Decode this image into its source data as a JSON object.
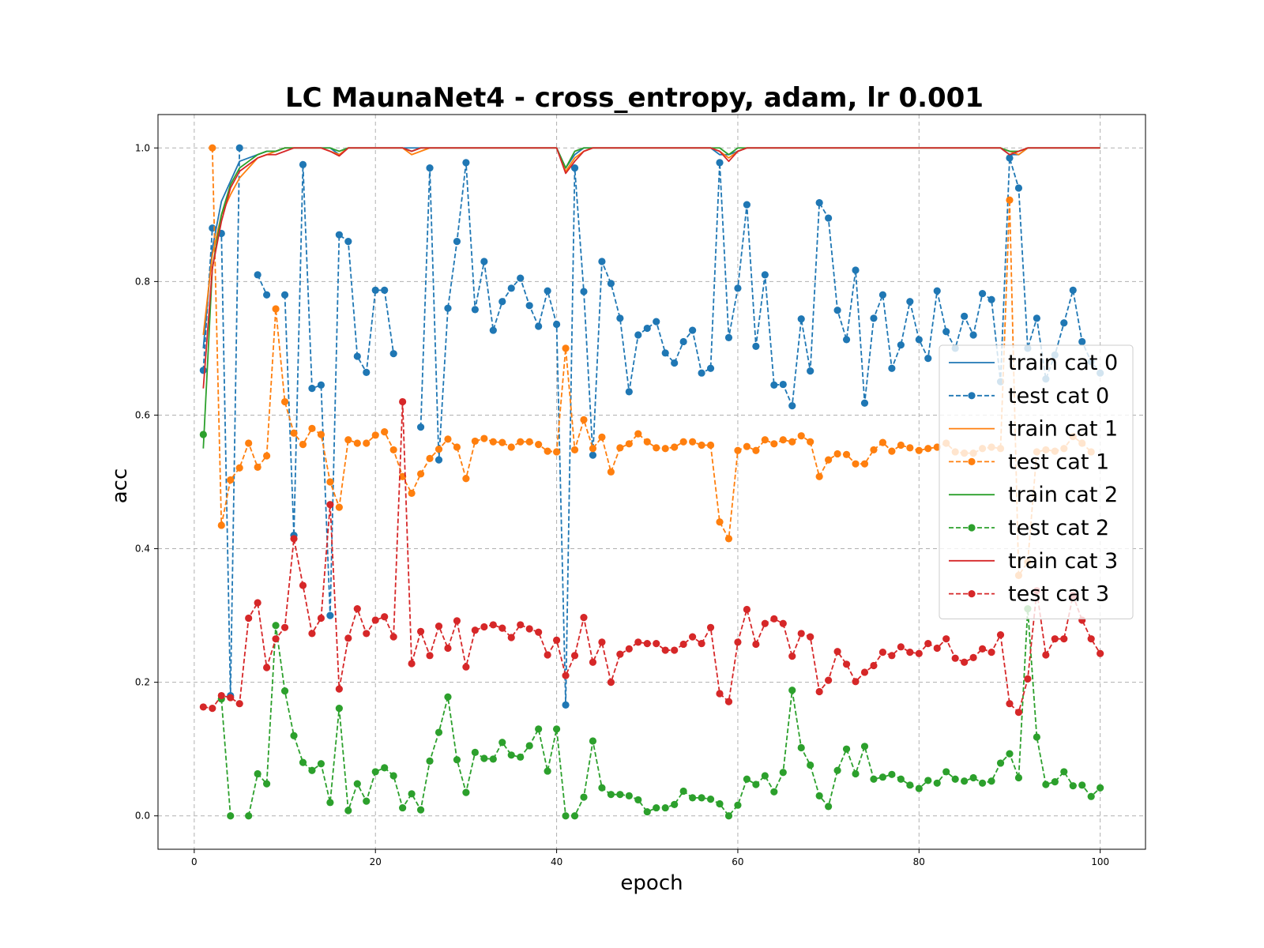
{
  "chart_data": {
    "type": "line",
    "title": "LC MaunaNet4 - cross_entropy, adam, lr 0.001",
    "xlabel": "epoch",
    "ylabel": "acc",
    "xlim": [
      -4,
      105
    ],
    "ylim": [
      -0.05,
      1.05
    ],
    "xticks": [
      0,
      20,
      40,
      60,
      80,
      100
    ],
    "yticks": [
      0.0,
      0.2,
      0.4,
      0.6,
      0.8,
      1.0
    ],
    "grid": true,
    "legend_position": "center-right",
    "x_start": 1,
    "series": [
      {
        "name": "train cat 0",
        "color": "#1f77b4",
        "style": "solid",
        "values": [
          0.7,
          0.85,
          0.92,
          0.95,
          0.98,
          0.985,
          0.99,
          0.995,
          0.995,
          1.0,
          1.0,
          1.0,
          1.0,
          1.0,
          1.0,
          0.99,
          1.0,
          1.0,
          1.0,
          1.0,
          1.0,
          1.0,
          1.0,
          1.0,
          1.0,
          1.0,
          1.0,
          1.0,
          1.0,
          1.0,
          1.0,
          1.0,
          1.0,
          1.0,
          1.0,
          1.0,
          1.0,
          1.0,
          1.0,
          1.0,
          0.97,
          0.99,
          1.0,
          1.0,
          1.0,
          1.0,
          1.0,
          1.0,
          1.0,
          1.0,
          1.0,
          1.0,
          1.0,
          1.0,
          1.0,
          1.0,
          1.0,
          0.99,
          0.99,
          0.995,
          1.0,
          1.0,
          1.0,
          1.0,
          1.0,
          1.0,
          1.0,
          1.0,
          1.0,
          1.0,
          1.0,
          1.0,
          1.0,
          1.0,
          1.0,
          1.0,
          1.0,
          1.0,
          1.0,
          1.0,
          1.0,
          1.0,
          1.0,
          1.0,
          1.0,
          1.0,
          1.0,
          1.0,
          1.0,
          0.99,
          0.99,
          1.0,
          1.0,
          1.0,
          1.0,
          1.0,
          1.0,
          1.0,
          1.0,
          1.0
        ]
      },
      {
        "name": "test cat 0",
        "color": "#1f77b4",
        "style": "dashed",
        "values": [
          0.667,
          0.88,
          0.872,
          0.18,
          1.0,
          null,
          0.81,
          0.78,
          null,
          0.78,
          0.42,
          0.975,
          0.64,
          0.645,
          0.3,
          0.87,
          0.86,
          0.688,
          0.664,
          0.787,
          0.787,
          0.692,
          null,
          null,
          0.582,
          0.97,
          0.533,
          0.76,
          0.86,
          0.978,
          0.758,
          0.83,
          0.727,
          0.77,
          0.79,
          0.805,
          0.764,
          0.733,
          0.786,
          0.736,
          0.166,
          0.97,
          0.785,
          0.54,
          0.83,
          0.797,
          0.745,
          0.635,
          0.72,
          0.73,
          0.74,
          0.693,
          0.678,
          0.71,
          0.727,
          0.663,
          0.67,
          0.978,
          0.716,
          0.79,
          0.915,
          0.703,
          0.81,
          0.645,
          0.646,
          0.614,
          0.744,
          0.666,
          0.918,
          0.895,
          0.757,
          0.713,
          0.817,
          0.618,
          0.745,
          0.78,
          0.67,
          0.705,
          0.77,
          0.713,
          0.685,
          0.786,
          0.725,
          0.7,
          0.748,
          0.72,
          0.782,
          0.773,
          0.65,
          0.985,
          0.94,
          0.7,
          0.745,
          0.654,
          0.69,
          0.738,
          0.787,
          0.71,
          0.68,
          0.663
        ]
      },
      {
        "name": "train cat 1",
        "color": "#ff7f0e",
        "style": "solid",
        "values": [
          0.72,
          0.84,
          0.9,
          0.93,
          0.955,
          0.97,
          0.985,
          0.99,
          0.995,
          1.0,
          1.0,
          1.0,
          1.0,
          1.0,
          0.995,
          0.99,
          1.0,
          1.0,
          1.0,
          1.0,
          1.0,
          1.0,
          1.0,
          0.99,
          0.995,
          1.0,
          1.0,
          1.0,
          1.0,
          1.0,
          1.0,
          1.0,
          1.0,
          1.0,
          1.0,
          1.0,
          1.0,
          1.0,
          1.0,
          1.0,
          0.965,
          0.985,
          0.995,
          1.0,
          1.0,
          1.0,
          1.0,
          1.0,
          1.0,
          1.0,
          1.0,
          1.0,
          1.0,
          1.0,
          1.0,
          1.0,
          1.0,
          0.995,
          0.985,
          0.995,
          1.0,
          1.0,
          1.0,
          1.0,
          1.0,
          1.0,
          1.0,
          1.0,
          1.0,
          1.0,
          1.0,
          1.0,
          1.0,
          1.0,
          1.0,
          1.0,
          1.0,
          1.0,
          1.0,
          1.0,
          1.0,
          1.0,
          1.0,
          1.0,
          1.0,
          1.0,
          1.0,
          1.0,
          1.0,
          0.995,
          0.99,
          1.0,
          1.0,
          1.0,
          1.0,
          1.0,
          1.0,
          1.0,
          1.0,
          1.0
        ]
      },
      {
        "name": "test cat 1",
        "color": "#ff7f0e",
        "style": "dashed",
        "values": [
          null,
          1.0,
          0.435,
          0.503,
          0.521,
          0.558,
          0.522,
          0.539,
          0.759,
          0.62,
          0.573,
          0.556,
          0.58,
          0.571,
          0.5,
          0.462,
          0.563,
          0.558,
          0.558,
          0.57,
          0.575,
          0.548,
          0.508,
          0.483,
          0.512,
          0.535,
          0.549,
          0.564,
          0.552,
          0.505,
          0.561,
          0.565,
          0.56,
          0.559,
          0.552,
          0.56,
          0.56,
          0.556,
          0.546,
          0.545,
          0.7,
          0.548,
          0.593,
          0.55,
          0.567,
          0.515,
          0.551,
          0.557,
          0.572,
          0.56,
          0.551,
          0.55,
          0.552,
          0.56,
          0.56,
          0.555,
          0.555,
          0.44,
          0.415,
          0.547,
          0.553,
          0.547,
          0.563,
          0.557,
          0.563,
          0.56,
          0.569,
          0.56,
          0.508,
          0.533,
          0.542,
          0.541,
          0.527,
          0.527,
          0.548,
          0.559,
          0.546,
          0.555,
          0.551,
          0.547,
          0.55,
          0.552,
          0.558,
          0.545,
          0.543,
          0.543,
          0.55,
          0.552,
          0.55,
          0.922,
          0.36,
          0.38,
          0.545,
          0.548,
          0.546,
          0.55,
          0.568,
          0.558,
          0.545,
          null
        ]
      },
      {
        "name": "train cat 2",
        "color": "#2ca02c",
        "style": "solid",
        "values": [
          0.55,
          0.82,
          0.9,
          0.945,
          0.97,
          0.98,
          0.99,
          0.995,
          0.995,
          1.0,
          1.0,
          1.0,
          1.0,
          1.0,
          1.0,
          0.995,
          1.0,
          1.0,
          1.0,
          1.0,
          1.0,
          1.0,
          1.0,
          0.995,
          1.0,
          1.0,
          1.0,
          1.0,
          1.0,
          1.0,
          1.0,
          1.0,
          1.0,
          1.0,
          1.0,
          1.0,
          1.0,
          1.0,
          1.0,
          1.0,
          0.97,
          0.995,
          1.0,
          1.0,
          1.0,
          1.0,
          1.0,
          1.0,
          1.0,
          1.0,
          1.0,
          1.0,
          1.0,
          1.0,
          1.0,
          1.0,
          1.0,
          1.0,
          0.99,
          1.0,
          1.0,
          1.0,
          1.0,
          1.0,
          1.0,
          1.0,
          1.0,
          1.0,
          1.0,
          1.0,
          1.0,
          1.0,
          1.0,
          1.0,
          1.0,
          1.0,
          1.0,
          1.0,
          1.0,
          1.0,
          1.0,
          1.0,
          1.0,
          1.0,
          1.0,
          1.0,
          1.0,
          1.0,
          1.0,
          0.995,
          0.995,
          1.0,
          1.0,
          1.0,
          1.0,
          1.0,
          1.0,
          1.0,
          1.0,
          1.0
        ]
      },
      {
        "name": "test cat 2",
        "color": "#2ca02c",
        "style": "dashed",
        "values": [
          0.571,
          null,
          0.175,
          0.0,
          null,
          0.0,
          0.063,
          0.048,
          0.285,
          0.187,
          0.12,
          0.08,
          0.068,
          0.078,
          0.02,
          0.161,
          0.008,
          0.048,
          0.022,
          0.066,
          0.072,
          0.06,
          0.012,
          0.033,
          0.009,
          0.082,
          0.125,
          0.178,
          0.084,
          0.035,
          0.095,
          0.086,
          0.085,
          0.11,
          0.091,
          0.088,
          0.105,
          0.13,
          0.067,
          0.13,
          0.0,
          0.0,
          0.028,
          0.112,
          0.042,
          0.032,
          0.032,
          0.03,
          0.024,
          0.006,
          0.012,
          0.012,
          0.017,
          0.037,
          0.027,
          0.027,
          0.025,
          0.018,
          0.0,
          0.016,
          0.055,
          0.047,
          0.06,
          0.036,
          0.065,
          0.188,
          0.102,
          0.076,
          0.03,
          0.014,
          0.068,
          0.1,
          0.063,
          0.104,
          0.055,
          0.058,
          0.062,
          0.055,
          0.046,
          0.041,
          0.053,
          0.049,
          0.066,
          0.055,
          0.052,
          0.057,
          0.049,
          0.052,
          0.079,
          0.093,
          0.057,
          0.31,
          0.118,
          0.047,
          0.051,
          0.066,
          0.045,
          0.046,
          0.029,
          0.042
        ]
      },
      {
        "name": "train cat 3",
        "color": "#d62728",
        "style": "solid",
        "values": [
          0.64,
          0.82,
          0.89,
          0.94,
          0.965,
          0.975,
          0.985,
          0.99,
          0.99,
          0.995,
          1.0,
          1.0,
          1.0,
          1.0,
          0.995,
          0.988,
          1.0,
          1.0,
          1.0,
          1.0,
          1.0,
          1.0,
          1.0,
          0.995,
          1.0,
          1.0,
          1.0,
          1.0,
          1.0,
          1.0,
          1.0,
          1.0,
          1.0,
          1.0,
          1.0,
          1.0,
          1.0,
          1.0,
          1.0,
          1.0,
          0.962,
          0.98,
          0.995,
          1.0,
          1.0,
          1.0,
          1.0,
          1.0,
          1.0,
          1.0,
          1.0,
          1.0,
          1.0,
          1.0,
          1.0,
          1.0,
          1.0,
          0.995,
          0.98,
          0.995,
          1.0,
          1.0,
          1.0,
          1.0,
          1.0,
          1.0,
          1.0,
          1.0,
          1.0,
          1.0,
          1.0,
          1.0,
          1.0,
          1.0,
          1.0,
          1.0,
          1.0,
          1.0,
          1.0,
          1.0,
          1.0,
          1.0,
          1.0,
          1.0,
          1.0,
          1.0,
          1.0,
          1.0,
          1.0,
          0.99,
          0.995,
          1.0,
          1.0,
          1.0,
          1.0,
          1.0,
          1.0,
          1.0,
          1.0,
          1.0
        ]
      },
      {
        "name": "test cat 3",
        "color": "#d62728",
        "style": "dashed",
        "values": [
          0.163,
          0.161,
          0.18,
          0.177,
          0.168,
          0.296,
          0.319,
          0.222,
          0.265,
          0.282,
          0.415,
          0.345,
          0.273,
          0.296,
          0.466,
          0.19,
          0.266,
          0.31,
          0.273,
          0.293,
          0.298,
          0.268,
          0.62,
          0.228,
          0.276,
          0.24,
          0.284,
          0.251,
          0.292,
          0.223,
          0.278,
          0.283,
          0.286,
          0.281,
          0.267,
          0.286,
          0.28,
          0.275,
          0.241,
          0.263,
          0.21,
          0.24,
          0.297,
          0.23,
          0.26,
          0.2,
          0.242,
          0.25,
          0.26,
          0.258,
          0.258,
          0.248,
          0.248,
          0.257,
          0.268,
          0.258,
          0.282,
          0.183,
          0.171,
          0.26,
          0.309,
          0.257,
          0.288,
          0.295,
          0.288,
          0.239,
          0.273,
          0.268,
          0.186,
          0.203,
          0.246,
          0.227,
          0.201,
          0.215,
          0.225,
          0.245,
          0.24,
          0.253,
          0.245,
          0.243,
          0.258,
          0.251,
          0.265,
          0.236,
          0.23,
          0.237,
          0.25,
          0.245,
          0.271,
          0.168,
          0.155,
          0.205,
          0.337,
          0.241,
          0.265,
          0.265,
          0.33,
          0.293,
          0.265,
          0.243
        ]
      }
    ]
  }
}
